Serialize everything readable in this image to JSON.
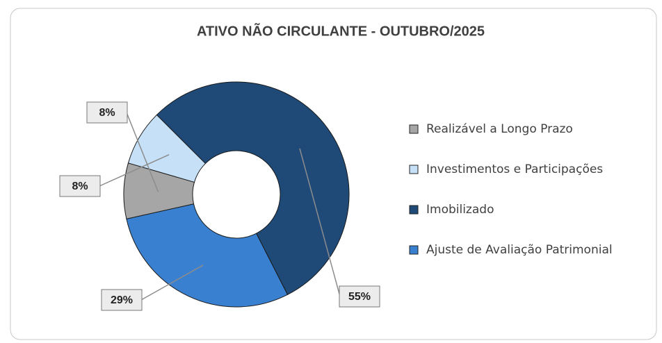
{
  "chart_data": {
    "type": "donut",
    "title": "ATIVO NÃO CIRCULANTE - OUTUBRO/2025",
    "categories": [
      "Realizável a Longo Prazo",
      "Investimentos e Participações",
      "Imobilizado",
      "Ajuste de Avaliação Patrimonial"
    ],
    "values": [
      8,
      8,
      55,
      29
    ],
    "value_labels": [
      "8%",
      "8%",
      "55%",
      "29%"
    ],
    "colors": [
      "#a6a6a6",
      "#c6e0f7",
      "#1f4a78",
      "#3a80d0"
    ],
    "legend": "right"
  }
}
